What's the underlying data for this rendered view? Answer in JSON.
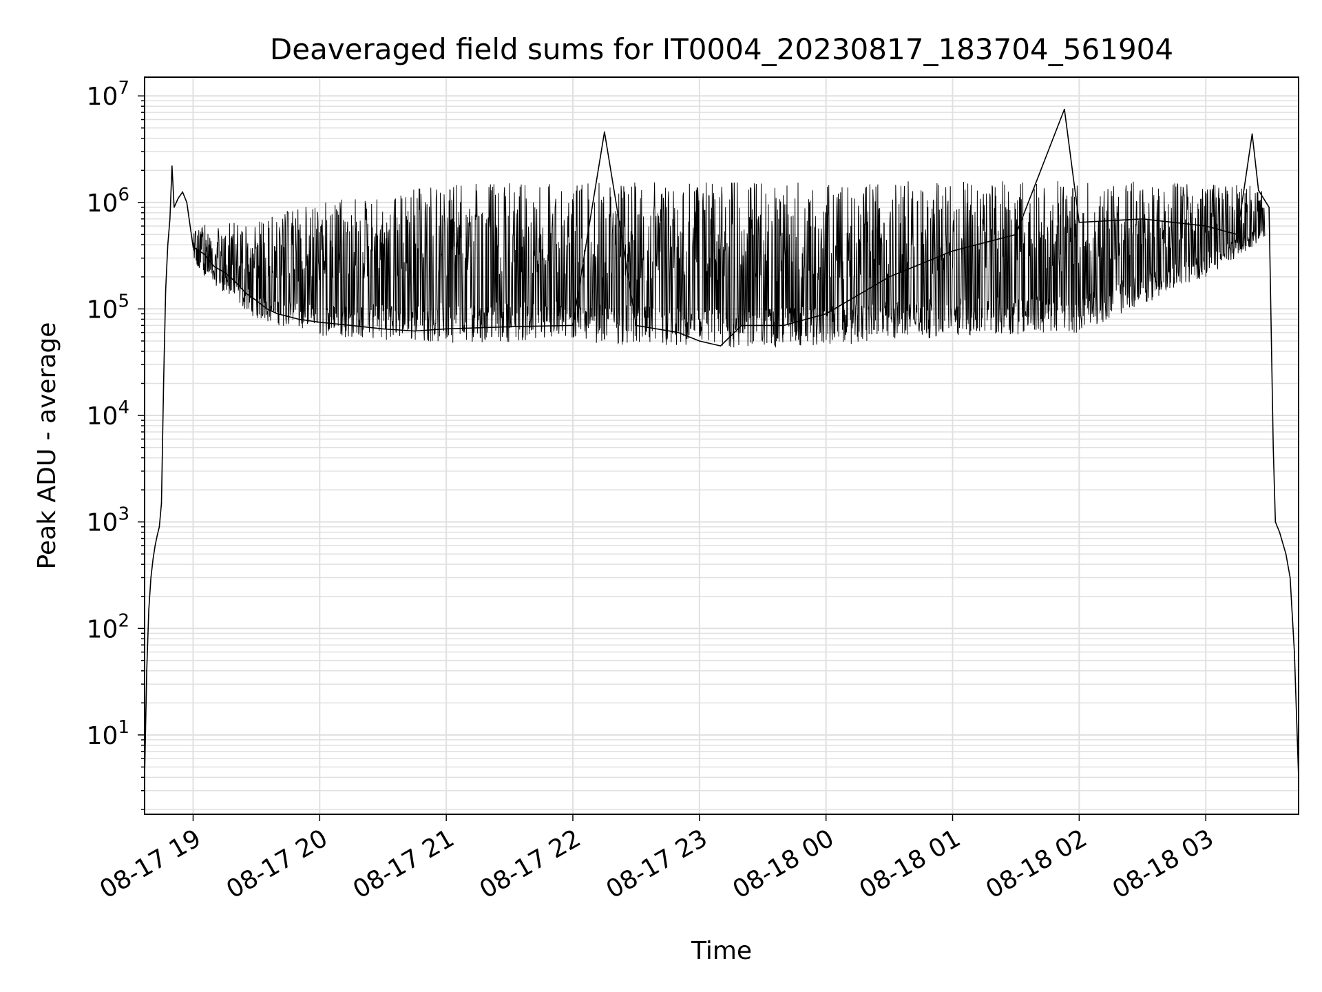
{
  "chart_data": {
    "type": "line",
    "title": "Deaveraged field sums for IT0004_20230817_183704_561904",
    "xlabel": "Time",
    "ylabel": "Peak ADU - average",
    "yscale": "log",
    "ylim": [
      1.8,
      15000000
    ],
    "xlim": [
      "2023-08-17 18:37",
      "2023-08-18 03:44"
    ],
    "grid": true,
    "line_color": "#000000",
    "grid_color": "#e0e0e0",
    "x_ticks": [
      {
        "t": "2023-08-17 19:00",
        "label": "08-17 19"
      },
      {
        "t": "2023-08-17 20:00",
        "label": "08-17 20"
      },
      {
        "t": "2023-08-17 21:00",
        "label": "08-17 21"
      },
      {
        "t": "2023-08-17 22:00",
        "label": "08-17 22"
      },
      {
        "t": "2023-08-17 23:00",
        "label": "08-17 23"
      },
      {
        "t": "2023-08-18 00:00",
        "label": "08-18 00"
      },
      {
        "t": "2023-08-18 01:00",
        "label": "08-18 01"
      },
      {
        "t": "2023-08-18 02:00",
        "label": "08-18 02"
      },
      {
        "t": "2023-08-18 03:00",
        "label": "08-18 03"
      }
    ],
    "y_ticks": [
      {
        "value": 10,
        "base": "10",
        "exp": "1"
      },
      {
        "value": 100,
        "base": "10",
        "exp": "2"
      },
      {
        "value": 1000,
        "base": "10",
        "exp": "3"
      },
      {
        "value": 10000,
        "base": "10",
        "exp": "4"
      },
      {
        "value": 100000,
        "base": "10",
        "exp": "5"
      },
      {
        "value": 1000000,
        "base": "10",
        "exp": "6"
      },
      {
        "value": 10000000,
        "base": "10",
        "exp": "7"
      }
    ],
    "series": [
      {
        "points": [
          [
            "2023-08-17 18:37",
            4
          ],
          [
            "2023-08-17 18:38",
            40
          ],
          [
            "2023-08-17 18:39",
            150
          ],
          [
            "2023-08-17 18:40",
            300
          ],
          [
            "2023-08-17 18:41",
            450
          ],
          [
            "2023-08-17 18:42",
            600
          ],
          [
            "2023-08-17 18:43",
            750
          ],
          [
            "2023-08-17 18:44",
            900
          ],
          [
            "2023-08-17 18:45",
            1500
          ],
          [
            "2023-08-17 18:46",
            20000
          ],
          [
            "2023-08-17 18:47",
            150000
          ],
          [
            "2023-08-17 18:48",
            400000
          ],
          [
            "2023-08-17 18:49",
            700000
          ],
          [
            "2023-08-17 18:50",
            2200000
          ],
          [
            "2023-08-17 18:51",
            900000
          ],
          [
            "2023-08-17 18:53",
            1100000
          ],
          [
            "2023-08-17 18:55",
            1250000
          ],
          [
            "2023-08-17 18:57",
            1000000
          ],
          [
            "2023-08-17 19:00",
            380000
          ],
          [
            "2023-08-17 19:05",
            330000
          ],
          [
            "2023-08-17 19:10",
            250000
          ],
          [
            "2023-08-17 19:15",
            220000
          ],
          [
            "2023-08-17 19:20",
            180000
          ],
          [
            "2023-08-17 19:25",
            140000
          ],
          [
            "2023-08-17 19:30",
            120000
          ],
          [
            "2023-08-17 19:35",
            100000
          ],
          [
            "2023-08-17 19:40",
            90000
          ],
          [
            "2023-08-17 19:45",
            85000
          ],
          [
            "2023-08-17 19:50",
            80000
          ],
          [
            "2023-08-17 20:00",
            75000
          ],
          [
            "2023-08-17 20:15",
            70000
          ],
          [
            "2023-08-17 20:30",
            65000
          ],
          [
            "2023-08-17 20:45",
            62000
          ],
          [
            "2023-08-17 21:00",
            65000
          ],
          [
            "2023-08-17 21:30",
            68000
          ],
          [
            "2023-08-17 22:00",
            70000
          ],
          [
            "2023-08-17 22:15",
            4600000
          ],
          [
            "2023-08-17 22:30",
            70000
          ],
          [
            "2023-08-17 22:50",
            60000
          ],
          [
            "2023-08-17 23:00",
            50000
          ],
          [
            "2023-08-17 23:10",
            45000
          ],
          [
            "2023-08-17 23:20",
            70000
          ],
          [
            "2023-08-17 23:40",
            70000
          ],
          [
            "2023-08-18 00:00",
            90000
          ],
          [
            "2023-08-18 00:30",
            200000
          ],
          [
            "2023-08-18 01:00",
            350000
          ],
          [
            "2023-08-18 01:30",
            500000
          ],
          [
            "2023-08-18 01:53",
            7500000
          ],
          [
            "2023-08-18 02:00",
            650000
          ],
          [
            "2023-08-18 02:30",
            700000
          ],
          [
            "2023-08-18 03:00",
            600000
          ],
          [
            "2023-08-18 03:15",
            500000
          ],
          [
            "2023-08-18 03:22",
            4400000
          ],
          [
            "2023-08-18 03:25",
            1300000
          ],
          [
            "2023-08-18 03:30",
            900000
          ],
          [
            "2023-08-18 03:32",
            5000
          ],
          [
            "2023-08-18 03:33",
            1000
          ],
          [
            "2023-08-18 03:35",
            800
          ],
          [
            "2023-08-18 03:38",
            500
          ],
          [
            "2023-08-18 03:40",
            300
          ],
          [
            "2023-08-18 03:42",
            60
          ],
          [
            "2023-08-18 03:44",
            4
          ]
        ],
        "envelope_upper": [
          [
            "2023-08-17 19:00",
            600000
          ],
          [
            "2023-08-17 19:30",
            700000
          ],
          [
            "2023-08-17 20:00",
            1000000
          ],
          [
            "2023-08-17 20:30",
            1200000
          ],
          [
            "2023-08-17 21:00",
            1500000
          ],
          [
            "2023-08-17 22:00",
            1550000
          ],
          [
            "2023-08-17 23:00",
            1550000
          ],
          [
            "2023-08-18 00:00",
            1550000
          ],
          [
            "2023-08-18 01:00",
            1600000
          ],
          [
            "2023-08-18 02:00",
            1600000
          ],
          [
            "2023-08-18 03:00",
            1550000
          ],
          [
            "2023-08-18 03:28",
            1500000
          ]
        ],
        "envelope_lower": [
          [
            "2023-08-17 19:00",
            250000
          ],
          [
            "2023-08-17 19:30",
            80000
          ],
          [
            "2023-08-17 20:00",
            55000
          ],
          [
            "2023-08-17 21:00",
            48000
          ],
          [
            "2023-08-17 22:00",
            50000
          ],
          [
            "2023-08-17 23:00",
            40000
          ],
          [
            "2023-08-18 00:00",
            45000
          ],
          [
            "2023-08-18 01:00",
            55000
          ],
          [
            "2023-08-18 02:00",
            60000
          ],
          [
            "2023-08-18 03:00",
            200000
          ],
          [
            "2023-08-18 03:28",
            450000
          ]
        ]
      }
    ]
  }
}
